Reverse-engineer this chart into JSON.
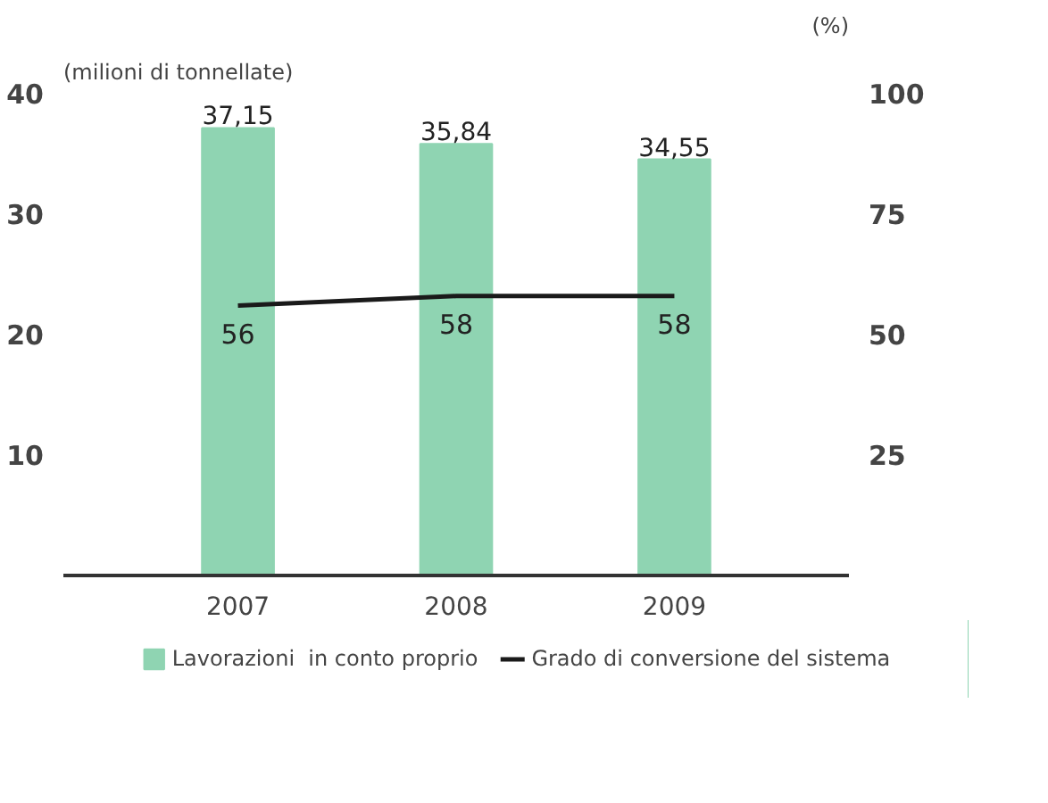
{
  "chart_data": {
    "type": "bar",
    "ylabel": "(milioni di tonnellate)",
    "y2label": "(%)",
    "categories": [
      "2007",
      "2008",
      "2009"
    ],
    "series": [
      {
        "name": "Lavorazioni  in conto proprio",
        "color": "#8fd4b2",
        "values": [
          37.15,
          35.84,
          34.55
        ],
        "value_labels": [
          "37,15",
          "35,84",
          "34,55"
        ]
      },
      {
        "name": "Grado di conversione del sistema",
        "type": "line",
        "axis": "y2",
        "color": "#1a1a1a",
        "values": [
          56,
          58,
          58
        ],
        "value_labels": [
          "56",
          "58",
          "58"
        ]
      }
    ],
    "ylim": [
      0,
      40
    ],
    "yticks": [
      10,
      20,
      30,
      40
    ],
    "y2lim": [
      0,
      100
    ],
    "y2ticks": [
      25,
      50,
      75,
      100
    ],
    "grid": false,
    "legend": "bottom",
    "line_style": "solid",
    "marker": "none"
  }
}
